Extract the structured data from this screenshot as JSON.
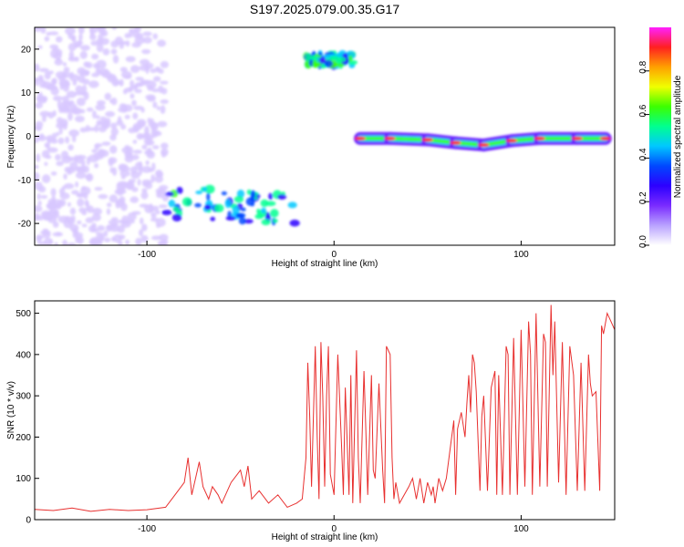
{
  "chart_data": [
    {
      "type": "heatmap",
      "title": "S197.2025.079.00.35.G17",
      "xlabel": "Height of straight line (km)",
      "ylabel": "Frequency (Hz)",
      "xlim": [
        -160,
        150
      ],
      "ylim": [
        -25,
        25
      ],
      "xticks": [
        -100,
        0,
        100
      ],
      "yticks": [
        -20,
        -10,
        0,
        10,
        20
      ],
      "colorbar": {
        "label": "Normalized spectral amplitude",
        "range": [
          0,
          1
        ],
        "ticks": [
          "0.0",
          "0.2",
          "0.4",
          "0.6",
          "0.8"
        ],
        "colors": [
          "#ffffff",
          "#b9a2ff",
          "#7a2bff",
          "#2c00ff",
          "#0048ff",
          "#00c8ff",
          "#00ff90",
          "#3cff00",
          "#f0ff00",
          "#ffa000",
          "#ff2020",
          "#ff20ff"
        ]
      },
      "features": [
        {
          "segment": "noise band",
          "x_range": [
            -160,
            -90
          ],
          "frequency_range": [
            -25,
            25
          ],
          "amplitude": 0.1
        },
        {
          "segment": "low-frequency cluster",
          "x_range": [
            -90,
            -20
          ],
          "frequency_range": [
            -20,
            -12
          ],
          "amplitude": 0.4
        },
        {
          "segment": "high-frequency tone",
          "x_range": [
            -15,
            10
          ],
          "frequency_range": [
            16,
            19
          ],
          "amplitude": 0.45
        },
        {
          "segment": "main tone",
          "x": [
            14,
            30,
            50,
            65,
            80,
            95,
            110,
            130,
            145
          ],
          "frequency": [
            -0.5,
            -0.5,
            -0.8,
            -1.5,
            -2.0,
            -1.0,
            -0.5,
            -0.5,
            -0.5
          ],
          "amplitude": 0.9
        }
      ]
    },
    {
      "type": "line",
      "title": "",
      "xlabel": "Height of straight line (km)",
      "ylabel": "SNR (10 * v/v)",
      "xlim": [
        -160,
        150
      ],
      "ylim": [
        0,
        530
      ],
      "xticks": [
        -100,
        0,
        100
      ],
      "yticks": [
        0,
        100,
        200,
        300,
        400,
        500
      ],
      "series_color": "#e8302f",
      "series": [
        {
          "x": [
            -160,
            -150,
            -140,
            -130,
            -120,
            -110,
            -100,
            -90,
            -85,
            -80,
            -78,
            -76,
            -72,
            -70,
            -67,
            -65,
            -62,
            -60,
            -55,
            -50,
            -48,
            -46,
            -44,
            -40,
            -35,
            -30,
            -25,
            -20,
            -17,
            -15,
            -14,
            -13,
            -12,
            -10,
            -9,
            -8,
            -7,
            -6,
            -5,
            -4,
            -3,
            -2,
            0,
            2,
            4,
            5,
            6,
            8,
            9,
            10,
            12,
            13,
            14,
            16,
            17,
            18,
            20,
            21,
            22,
            24,
            26,
            27,
            28,
            30,
            31,
            32,
            33,
            35,
            40,
            42,
            44,
            46,
            48,
            50,
            52,
            53,
            54,
            56,
            58,
            60,
            62,
            64,
            65,
            66,
            68,
            70,
            71,
            72,
            73,
            74,
            75,
            76,
            78,
            79,
            80,
            82,
            84,
            86,
            87,
            88,
            90,
            92,
            93,
            94,
            96,
            98,
            100,
            102,
            104,
            105,
            106,
            108,
            110,
            112,
            113,
            114,
            116,
            117,
            118,
            120,
            122,
            124,
            126,
            128,
            130,
            132,
            134,
            136,
            137,
            138,
            140,
            142,
            143,
            144,
            146,
            148,
            150
          ],
          "y": [
            25,
            22,
            28,
            20,
            25,
            22,
            24,
            30,
            60,
            90,
            150,
            60,
            140,
            80,
            50,
            80,
            60,
            40,
            90,
            120,
            80,
            130,
            50,
            70,
            40,
            60,
            30,
            40,
            50,
            150,
            380,
            250,
            80,
            420,
            200,
            50,
            430,
            300,
            80,
            300,
            420,
            110,
            60,
            400,
            180,
            60,
            320,
            60,
            350,
            40,
            410,
            150,
            40,
            360,
            220,
            60,
            350,
            120,
            100,
            330,
            120,
            40,
            420,
            400,
            150,
            50,
            90,
            40,
            80,
            100,
            50,
            100,
            40,
            90,
            60,
            80,
            40,
            100,
            70,
            100,
            170,
            240,
            60,
            220,
            260,
            200,
            280,
            350,
            260,
            400,
            380,
            310,
            70,
            250,
            300,
            70,
            320,
            360,
            60,
            350,
            60,
            420,
            400,
            60,
            440,
            60,
            460,
            80,
            480,
            400,
            60,
            500,
            80,
            450,
            430,
            80,
            520,
            350,
            480,
            90,
            430,
            60,
            420,
            350,
            70,
            380,
            70,
            400,
            330,
            300,
            310,
            70,
            470,
            450,
            500,
            480,
            460
          ]
        }
      ]
    }
  ]
}
